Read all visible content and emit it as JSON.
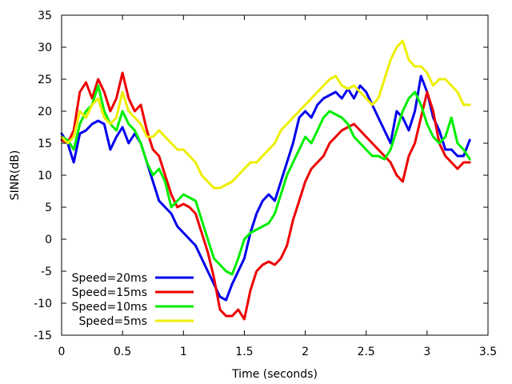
{
  "chart_data": {
    "type": "line",
    "xlabel": "Time (seconds)",
    "ylabel": "SINR(dB)",
    "xlim": [
      0,
      3.5
    ],
    "ylim": [
      -15,
      35
    ],
    "xticks": [
      0,
      0.5,
      1,
      1.5,
      2,
      2.5,
      3,
      3.5
    ],
    "xtick_labels": [
      "0",
      "0.5",
      "1",
      "1.5",
      "2",
      "2.5",
      "3",
      "3.5"
    ],
    "yticks": [
      -15,
      -10,
      -5,
      0,
      5,
      10,
      15,
      20,
      25,
      30,
      35
    ],
    "ytick_labels": [
      "-15",
      "-10",
      "-5",
      "0",
      "5",
      "10",
      "15",
      "20",
      "25",
      "30",
      "35"
    ],
    "grid": false,
    "legend_position": "bottom-left",
    "series": [
      {
        "name": "Speed=20ms",
        "color": "#0000ee",
        "x": [
          0,
          0.05,
          0.1,
          0.15,
          0.2,
          0.25,
          0.3,
          0.35,
          0.4,
          0.45,
          0.5,
          0.55,
          0.6,
          0.65,
          0.7,
          0.75,
          0.8,
          0.85,
          0.9,
          0.95,
          1.0,
          1.05,
          1.1,
          1.15,
          1.2,
          1.25,
          1.3,
          1.35,
          1.4,
          1.45,
          1.5,
          1.55,
          1.6,
          1.65,
          1.7,
          1.75,
          1.8,
          1.85,
          1.9,
          1.95,
          2.0,
          2.05,
          2.1,
          2.15,
          2.2,
          2.25,
          2.3,
          2.35,
          2.4,
          2.45,
          2.5,
          2.55,
          2.6,
          2.65,
          2.7,
          2.75,
          2.8,
          2.85,
          2.9,
          2.95,
          3.0,
          3.05,
          3.1,
          3.15,
          3.2,
          3.25,
          3.3,
          3.35
        ],
        "values": [
          16.5,
          15,
          12,
          16.5,
          17,
          18,
          18.5,
          18,
          14,
          16,
          17.5,
          15,
          16.5,
          15,
          12,
          9,
          6,
          5,
          4,
          2,
          1,
          0,
          -1,
          -3,
          -5,
          -7,
          -9,
          -9.5,
          -7,
          -5,
          -3,
          1,
          4,
          6,
          7,
          6,
          9,
          12,
          15,
          19,
          20,
          19,
          21,
          22,
          22.5,
          23,
          22,
          23.5,
          22,
          24,
          23,
          21,
          19,
          17,
          15,
          20,
          19,
          17,
          20,
          25.5,
          23,
          19,
          17,
          14,
          14,
          13,
          13,
          15.5
        ]
      },
      {
        "name": "Speed=15ms",
        "color": "#ee0000",
        "x": [
          0,
          0.05,
          0.1,
          0.15,
          0.2,
          0.25,
          0.3,
          0.35,
          0.4,
          0.45,
          0.5,
          0.55,
          0.6,
          0.65,
          0.7,
          0.75,
          0.8,
          0.85,
          0.9,
          0.95,
          1.0,
          1.05,
          1.1,
          1.15,
          1.2,
          1.25,
          1.3,
          1.35,
          1.4,
          1.45,
          1.5,
          1.55,
          1.6,
          1.65,
          1.7,
          1.75,
          1.8,
          1.85,
          1.9,
          1.95,
          2.0,
          2.05,
          2.1,
          2.15,
          2.2,
          2.25,
          2.3,
          2.35,
          2.4,
          2.45,
          2.5,
          2.55,
          2.6,
          2.65,
          2.7,
          2.75,
          2.8,
          2.85,
          2.9,
          2.95,
          3.0,
          3.05,
          3.1,
          3.15,
          3.2,
          3.25,
          3.3,
          3.35
        ],
        "values": [
          15.5,
          15,
          17,
          23,
          24.5,
          22,
          25,
          23,
          20,
          22,
          26,
          22,
          20,
          21,
          17,
          14,
          13,
          10,
          7,
          5,
          5.5,
          5,
          4,
          1,
          -2,
          -6,
          -11,
          -12,
          -12,
          -11,
          -12.5,
          -8,
          -5,
          -4,
          -3.5,
          -4,
          -3,
          -1,
          3,
          6,
          9,
          11,
          12,
          13,
          15,
          16,
          17,
          17.5,
          18,
          17,
          16,
          15,
          14,
          13,
          12,
          10,
          9,
          13,
          15,
          19,
          23,
          20,
          15,
          13,
          12,
          11,
          12,
          12
        ]
      },
      {
        "name": "Speed=10ms",
        "color": "#00ee00",
        "x": [
          0,
          0.05,
          0.1,
          0.15,
          0.2,
          0.25,
          0.3,
          0.35,
          0.4,
          0.45,
          0.5,
          0.55,
          0.6,
          0.65,
          0.7,
          0.75,
          0.8,
          0.85,
          0.9,
          0.95,
          1.0,
          1.05,
          1.1,
          1.15,
          1.2,
          1.25,
          1.3,
          1.35,
          1.4,
          1.45,
          1.5,
          1.55,
          1.6,
          1.65,
          1.7,
          1.75,
          1.8,
          1.85,
          1.9,
          1.95,
          2.0,
          2.05,
          2.1,
          2.15,
          2.2,
          2.25,
          2.3,
          2.35,
          2.4,
          2.45,
          2.5,
          2.55,
          2.6,
          2.65,
          2.7,
          2.75,
          2.8,
          2.85,
          2.9,
          2.95,
          3.0,
          3.05,
          3.1,
          3.15,
          3.2,
          3.25,
          3.3,
          3.35
        ],
        "values": [
          16,
          15.5,
          14,
          18,
          20,
          21,
          24,
          20,
          18,
          17,
          20,
          18,
          17,
          15,
          12,
          10,
          11,
          9,
          5,
          6,
          7,
          6.5,
          6,
          3,
          0,
          -3,
          -4,
          -5,
          -5.5,
          -3,
          0,
          1,
          1.5,
          2,
          2.5,
          4,
          7,
          10,
          12,
          14,
          16,
          15,
          17,
          19,
          20,
          19.5,
          19,
          18,
          16,
          15,
          14,
          13,
          13,
          12.5,
          14,
          17,
          20,
          22,
          23,
          21,
          18,
          16,
          15,
          16,
          19,
          15,
          14,
          12.5
        ]
      },
      {
        "name": "Speed=5ms",
        "color": "#eeee00",
        "x": [
          0,
          0.05,
          0.1,
          0.15,
          0.2,
          0.25,
          0.3,
          0.35,
          0.4,
          0.45,
          0.5,
          0.55,
          0.6,
          0.65,
          0.7,
          0.75,
          0.8,
          0.85,
          0.9,
          0.95,
          1.0,
          1.05,
          1.1,
          1.15,
          1.2,
          1.25,
          1.3,
          1.35,
          1.4,
          1.45,
          1.5,
          1.55,
          1.6,
          1.65,
          1.7,
          1.75,
          1.8,
          1.85,
          1.9,
          1.95,
          2.0,
          2.05,
          2.1,
          2.15,
          2.2,
          2.25,
          2.3,
          2.35,
          2.4,
          2.45,
          2.5,
          2.55,
          2.6,
          2.65,
          2.7,
          2.75,
          2.8,
          2.85,
          2.9,
          2.95,
          3.0,
          3.05,
          3.1,
          3.15,
          3.2,
          3.25,
          3.3,
          3.35
        ],
        "values": [
          16,
          15,
          16,
          20,
          19,
          21,
          22,
          19,
          18,
          19,
          23,
          20,
          19,
          18,
          16,
          16,
          17,
          16,
          15,
          14,
          14,
          13,
          12,
          10,
          9,
          8,
          8,
          8.5,
          9,
          10,
          11,
          12,
          12,
          13,
          14,
          15,
          17,
          18,
          19,
          20,
          21,
          22,
          23,
          24,
          25,
          25.5,
          24,
          23.5,
          24,
          23,
          22,
          21,
          22,
          25,
          28,
          30,
          31,
          28,
          27,
          27,
          26,
          24,
          25,
          25,
          24,
          23,
          21,
          21
        ]
      }
    ]
  }
}
